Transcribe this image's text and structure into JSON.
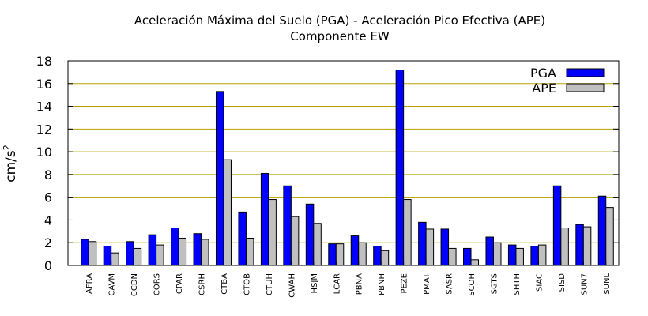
{
  "chart_data": {
    "type": "bar",
    "title": "Aceleración Máxima del Suelo (PGA) -  Aceleración Pico Efectiva (APE)",
    "subtitle": "Componente EW",
    "xlabel": "",
    "ylabel_base": "cm/s",
    "ylabel_exp": "2",
    "ylim": [
      0,
      18
    ],
    "yticks": [
      "0",
      "2",
      "4",
      "6",
      "8",
      "10",
      "12",
      "14",
      "16",
      "18"
    ],
    "grid": true,
    "legend_position": "top-right",
    "categories": [
      "AFRA",
      "CAVM",
      "CCDN",
      "CORS",
      "CPAR",
      "CSRH",
      "CTBA",
      "CTOB",
      "CTUH",
      "CWAH",
      "HSJM",
      "LCAR",
      "PBNA",
      "PBNH",
      "PEZE",
      "PMAT",
      "SASR",
      "SCOH",
      "SGTS",
      "SHTH",
      "SIAC",
      "SISD",
      "SUN7",
      "SUNL"
    ],
    "series": [
      {
        "name": "PGA",
        "color": "#0000ff",
        "values": [
          2.3,
          1.7,
          2.1,
          2.7,
          3.3,
          2.8,
          15.3,
          4.7,
          8.1,
          7.0,
          5.4,
          1.9,
          2.6,
          1.7,
          17.2,
          3.8,
          3.2,
          1.5,
          2.5,
          1.8,
          1.7,
          7.0,
          3.6,
          6.1
        ]
      },
      {
        "name": "APE",
        "color": "#c0c0c0",
        "values": [
          2.1,
          1.1,
          1.5,
          1.8,
          2.4,
          2.3,
          9.3,
          2.4,
          5.8,
          4.3,
          3.7,
          1.9,
          2.0,
          1.3,
          5.8,
          3.2,
          1.5,
          0.5,
          2.0,
          1.5,
          1.8,
          3.3,
          3.4,
          5.1
        ]
      }
    ],
    "colors": {
      "grid": "#b8a000",
      "axis": "#000000"
    }
  }
}
